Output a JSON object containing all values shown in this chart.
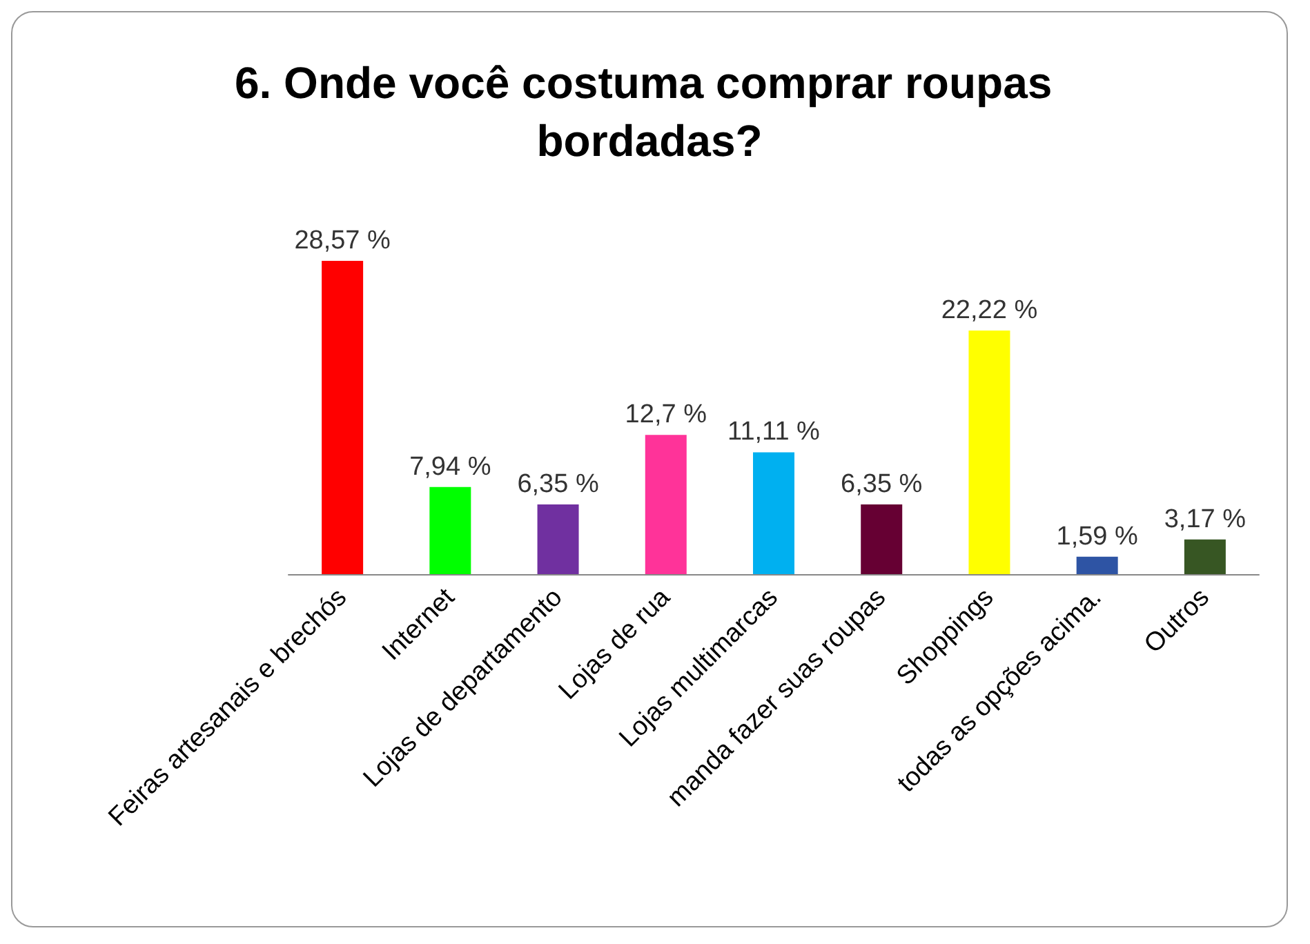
{
  "chart_data": {
    "type": "bar",
    "title": "6. Onde você costuma comprar roupas bordadas?",
    "categories": [
      "Feiras artesanais e brechós",
      "Internet",
      "Lojas de departamento",
      "Lojas de rua",
      "Lojas multimarcas",
      "manda fazer suas roupas",
      "Shoppings",
      "todas as opções acima.",
      "Outros"
    ],
    "values": [
      28.57,
      7.94,
      6.35,
      12.7,
      11.11,
      6.35,
      22.22,
      1.59,
      3.17
    ],
    "colors": [
      "#ff0000",
      "#00ff00",
      "#7030a0",
      "#ff3399",
      "#00b0f0",
      "#660033",
      "#ffff00",
      "#2e54a4",
      "#375623"
    ],
    "value_labels": [
      "28,57 %",
      "7,94 %",
      "6,35 %",
      "12,7 %",
      "11,11 %",
      "6,35 %",
      "22,22 %",
      "1,59 %",
      "3,17 %"
    ]
  }
}
